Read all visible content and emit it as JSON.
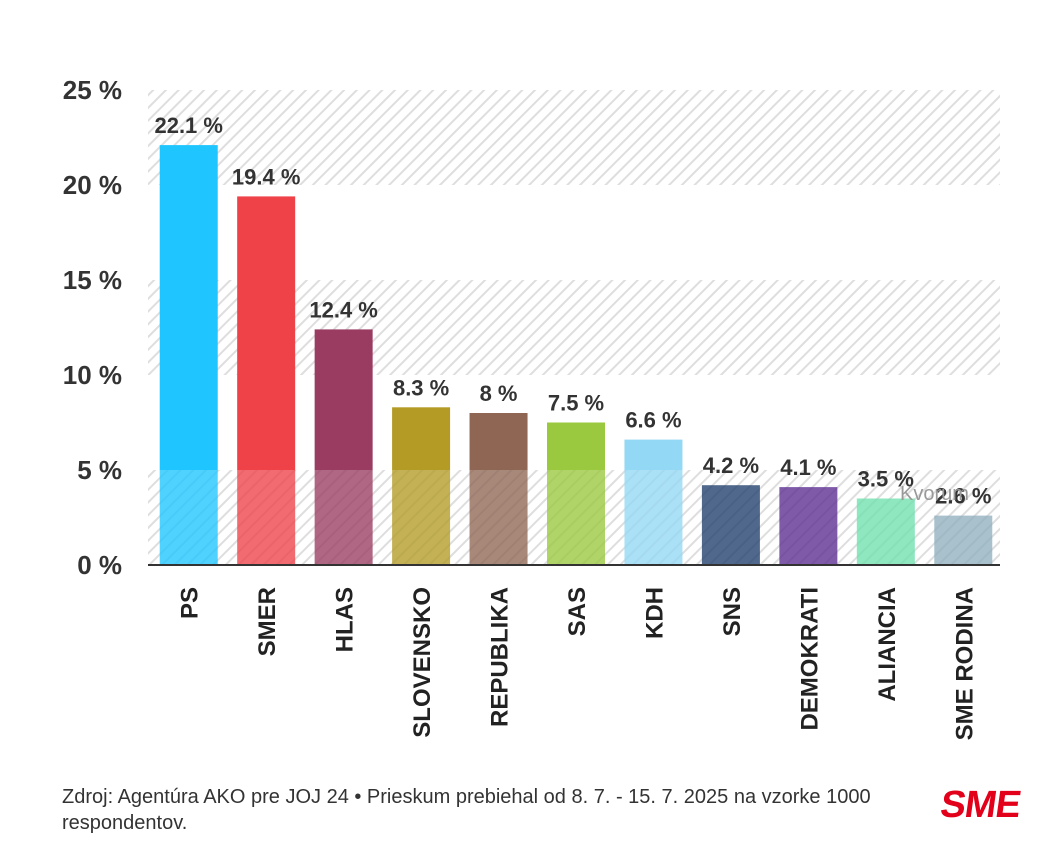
{
  "chart_data": {
    "type": "bar",
    "categories": [
      "PS",
      "SMER",
      "HLAS",
      "SLOVENSKO",
      "REPUBLIKA",
      "SAS",
      "KDH",
      "SNS",
      "DEMOKRATI",
      "ALIANCIA",
      "SME RODINA"
    ],
    "values": [
      22.1,
      19.4,
      12.4,
      8.3,
      8,
      7.5,
      6.6,
      4.2,
      4.1,
      3.5,
      2.6
    ],
    "value_labels": [
      "22.1 %",
      "19.4 %",
      "12.4 %",
      "8.3 %",
      "8 %",
      "7.5 %",
      "6.6 %",
      "4.2 %",
      "4.1 %",
      "3.5 %",
      "2.6 %"
    ],
    "colors": [
      "#1ec5ff",
      "#ee4148",
      "#9a3c61",
      "#b39b25",
      "#8e6653",
      "#9ac83e",
      "#93d8f4",
      "#1e3e6c",
      "#5b2c91",
      "#6ee0ac",
      "#8fafbe"
    ],
    "ylim": [
      0,
      25
    ],
    "y_ticks": [
      0,
      5,
      10,
      15,
      20,
      25
    ],
    "y_tick_labels": [
      "0 %",
      "5 %",
      "10 %",
      "15 %",
      "20 %",
      "25 %"
    ],
    "xlabel": "",
    "ylabel": "",
    "title": "",
    "grid": "alternating hatched bands",
    "legend": "none"
  },
  "watermark": "Kvorum",
  "source_text": "Zdroj: Agentúra AKO pre JOJ 24 • Prieskum prebiehal od 8. 7. - 15. 7. 2025 na vzorke 1000 respondentov.",
  "logo_text": "SME"
}
